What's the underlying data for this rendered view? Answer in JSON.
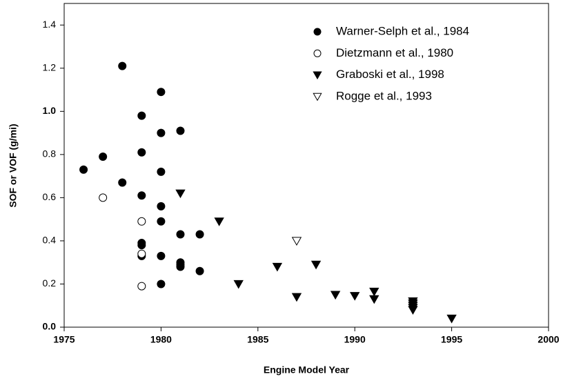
{
  "chart_data": {
    "type": "scatter",
    "xlabel": "Engine Model Year",
    "ylabel": "SOF or VOF (g/mi)",
    "xlim": [
      1975,
      2000
    ],
    "xticks": [
      1975,
      1980,
      1985,
      1990,
      1995,
      2000
    ],
    "ylim": [
      0,
      1.5
    ],
    "yticks": [
      {
        "value": 0,
        "label": "0.0"
      },
      {
        "value": 0.2,
        "label": "0.2"
      },
      {
        "value": 0.4,
        "label": "0.4"
      },
      {
        "value": 0.6,
        "label": "0.6"
      },
      {
        "value": 0.8,
        "label": "0.8"
      },
      {
        "value": 1.0,
        "label": "1.0"
      },
      {
        "value": 1.2,
        "label": "1.2"
      },
      {
        "value": 1.4,
        "label": "1.4"
      }
    ],
    "legend": "upper right",
    "series": [
      {
        "name": "Warner-Selph et al., 1984",
        "color": "#000000",
        "marker": "circle",
        "x": [
          1976,
          1977,
          1978,
          1978,
          1979,
          1979,
          1979,
          1979,
          1979,
          1979,
          1980,
          1980,
          1980,
          1980,
          1980,
          1980,
          1980,
          1981,
          1981,
          1981,
          1981,
          1981,
          1982,
          1982
        ],
        "values": [
          0.73,
          0.79,
          1.21,
          0.67,
          0.98,
          0.81,
          0.61,
          0.39,
          0.38,
          0.33,
          1.09,
          0.9,
          0.72,
          0.56,
          0.49,
          0.33,
          0.2,
          0.91,
          0.43,
          0.3,
          0.29,
          0.28,
          0.43,
          0.26
        ]
      },
      {
        "name": "Dietzmann et al., 1980",
        "color": "#000000",
        "marker": "circle-open",
        "x": [
          1977,
          1979,
          1979,
          1979
        ],
        "values": [
          0.6,
          0.49,
          0.34,
          0.19
        ]
      },
      {
        "name": "Graboski et al., 1998",
        "color": "#000000",
        "marker": "triangle-down",
        "x": [
          1981,
          1983,
          1984,
          1986,
          1987,
          1988,
          1989,
          1990,
          1991,
          1991,
          1993,
          1993,
          1993,
          1993,
          1993,
          1995
        ],
        "values": [
          0.62,
          0.49,
          0.2,
          0.28,
          0.14,
          0.29,
          0.15,
          0.145,
          0.165,
          0.13,
          0.12,
          0.11,
          0.1,
          0.09,
          0.08,
          0.04
        ]
      },
      {
        "name": "Rogge et al., 1993",
        "color": "#000000",
        "marker": "triangle-down-open",
        "x": [
          1987
        ],
        "values": [
          0.4
        ]
      }
    ]
  }
}
